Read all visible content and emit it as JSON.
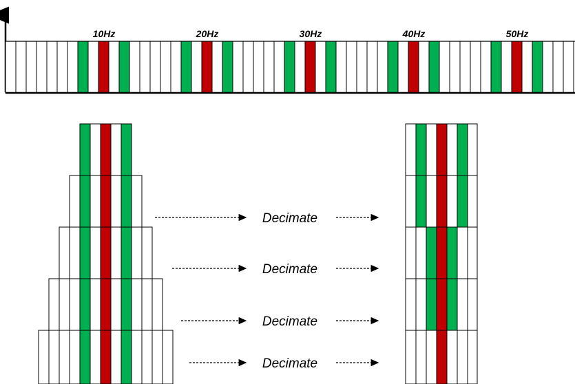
{
  "spectrum": {
    "frequency_labels": [
      "10Hz",
      "20Hz",
      "30Hz",
      "40Hz",
      "50Hz"
    ]
  },
  "pipeline": {
    "steps": [
      {
        "label": "Decimate"
      },
      {
        "label": "Decimate"
      },
      {
        "label": "Decimate"
      },
      {
        "label": "Decimate"
      }
    ]
  },
  "colors": {
    "signal": "#c00000",
    "sideband": "#00b050",
    "bin_stroke": "#000000",
    "background": "#ffffff"
  }
}
